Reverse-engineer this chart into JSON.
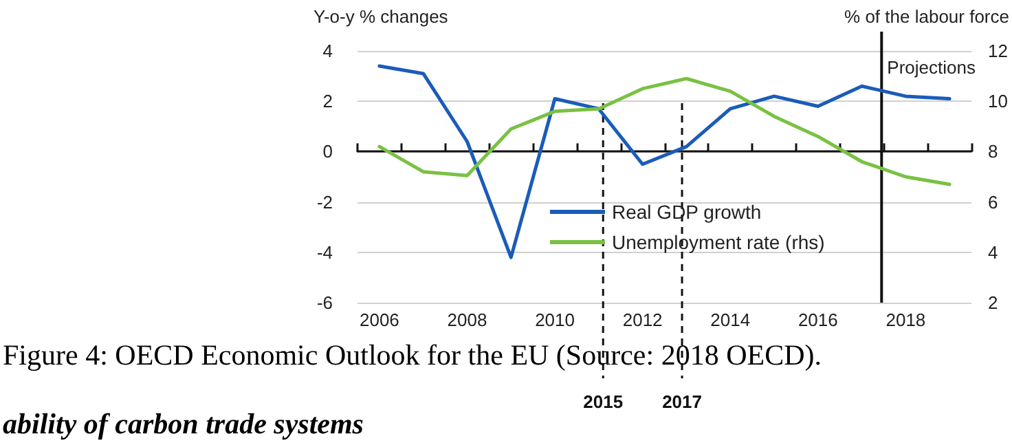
{
  "chart_data": {
    "type": "line",
    "ylabel": "Y-o-y % changes",
    "y2label": "% of the labour force",
    "x": [
      2006,
      2007,
      2008,
      2009,
      2010,
      2011,
      2012,
      2013,
      2014,
      2015,
      2016,
      2017,
      2018,
      2019
    ],
    "series": [
      {
        "name": "Real GDP growth",
        "color": "#1a5cb8",
        "values": [
          3.4,
          3.1,
          0.4,
          -4.2,
          2.1,
          1.7,
          -0.5,
          0.2,
          1.7,
          2.2,
          1.8,
          2.6,
          2.2,
          2.1
        ]
      },
      {
        "name": "Unemployment rate (rhs)",
        "color": "#7ac143",
        "axis": "y2",
        "values": [
          8.2,
          7.2,
          7.05,
          8.9,
          9.6,
          9.7,
          10.5,
          10.9,
          10.4,
          9.4,
          8.6,
          7.6,
          7.0,
          6.7
        ]
      }
    ],
    "xlim": [
      2005.5,
      2019.5
    ],
    "xticks": [
      {
        "value": 2005.5,
        "label": null
      },
      {
        "value": 2006,
        "label": "2006"
      },
      {
        "value": 2006.5,
        "label": null
      },
      {
        "value": 2007.5,
        "label": null
      },
      {
        "value": 2008,
        "label": "2008"
      },
      {
        "value": 2008.5,
        "label": null
      },
      {
        "value": 2009.5,
        "label": null
      },
      {
        "value": 2010,
        "label": "2010"
      },
      {
        "value": 2010.5,
        "label": null
      },
      {
        "value": 2011.5,
        "label": null
      },
      {
        "value": 2012,
        "label": "2012"
      },
      {
        "value": 2012.5,
        "label": null
      },
      {
        "value": 2013.5,
        "label": null
      },
      {
        "value": 2014,
        "label": "2014"
      },
      {
        "value": 2014.5,
        "label": null
      },
      {
        "value": 2015.5,
        "label": null
      },
      {
        "value": 2016,
        "label": "2016"
      },
      {
        "value": 2016.5,
        "label": null
      },
      {
        "value": 2017.5,
        "label": null
      },
      {
        "value": 2018,
        "label": "2018"
      },
      {
        "value": 2018.5,
        "label": null
      },
      {
        "value": 2019.5,
        "label": null
      }
    ],
    "ylim": [
      -6,
      4
    ],
    "yticks": [
      -6,
      -4,
      -2,
      0,
      2,
      4
    ],
    "y2lim": [
      2,
      12
    ],
    "y2ticks": [
      2,
      4,
      6,
      8,
      10,
      12
    ],
    "ref_lines": [
      {
        "axis": "x",
        "value": 2011.1,
        "line_style": "dashed"
      },
      {
        "axis": "x",
        "value": 2012.9,
        "line_style": "dashed"
      },
      {
        "axis": "x",
        "value": 2017.45,
        "label": "Projections",
        "line_style": "solid"
      }
    ],
    "annotations": [
      "Figure 4: OECD Economic Outlook for the EU (Source: 2018 OECD).",
      "ability of carbon trade systems",
      "2015",
      "2017"
    ],
    "grid": "y",
    "legend": "bottom",
    "marker": "none",
    "line_style": "solid"
  }
}
